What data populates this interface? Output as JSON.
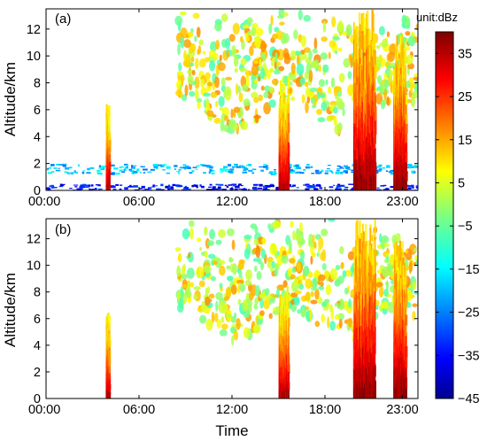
{
  "chart_data": [
    {
      "type": "heatmap",
      "panel_label": "(a)",
      "ylabel": "Altitude/km",
      "xlabel": "",
      "x_ticks": [
        "00:00",
        "06:00",
        "12:00",
        "18:00",
        "23:00"
      ],
      "x_tick_hours": [
        0,
        6,
        12,
        18,
        23
      ],
      "xlim_hours": [
        0,
        24
      ],
      "y_ticks": [
        0,
        2,
        4,
        6,
        8,
        10,
        12
      ],
      "ylim": [
        0,
        13.5
      ],
      "grid": false,
      "clutter_layers": [
        {
          "name": "boundary_layer",
          "alt_bottom": 1.3,
          "alt_top": 2.0,
          "value": -20
        },
        {
          "name": "near_surface",
          "alt_bottom": 0.0,
          "alt_top": 0.5,
          "value": -35
        }
      ],
      "columns": [
        {
          "t_start": 3.85,
          "t_end": 4.05,
          "alt_bottom": 0.0,
          "alt_top": 6.5,
          "max_dbz": 35
        },
        {
          "t_start": 15.0,
          "t_end": 15.6,
          "alt_bottom": 0.0,
          "alt_top": 8.5,
          "max_dbz": 35
        },
        {
          "t_start": 19.8,
          "t_end": 21.2,
          "alt_bottom": 0.0,
          "alt_top": 13.5,
          "max_dbz": 38
        },
        {
          "t_start": 22.4,
          "t_end": 23.2,
          "alt_bottom": 0.0,
          "alt_top": 12.0,
          "max_dbz": 38
        }
      ],
      "cloud_deck": {
        "t_start": 8.5,
        "t_end": 24.0,
        "alt_bottom": 5.5,
        "alt_top": 13.5,
        "typical_dbz": 5
      }
    },
    {
      "type": "heatmap",
      "panel_label": "(b)",
      "ylabel": "Altitude/km",
      "xlabel": "Time",
      "x_ticks": [
        "00:00",
        "06:00",
        "12:00",
        "18:00",
        "23:00"
      ],
      "x_tick_hours": [
        0,
        6,
        12,
        18,
        23
      ],
      "xlim_hours": [
        0,
        24
      ],
      "y_ticks": [
        0,
        2,
        4,
        6,
        8,
        10,
        12
      ],
      "ylim": [
        0,
        13.5
      ],
      "grid": false,
      "clutter_layers": [],
      "columns": [
        {
          "t_start": 3.85,
          "t_end": 4.05,
          "alt_bottom": 0.0,
          "alt_top": 6.5,
          "max_dbz": 35
        },
        {
          "t_start": 15.0,
          "t_end": 15.6,
          "alt_bottom": 0.0,
          "alt_top": 8.5,
          "max_dbz": 35
        },
        {
          "t_start": 19.8,
          "t_end": 21.2,
          "alt_bottom": 0.0,
          "alt_top": 13.5,
          "max_dbz": 38
        },
        {
          "t_start": 22.4,
          "t_end": 23.2,
          "alt_bottom": 0.0,
          "alt_top": 12.0,
          "max_dbz": 38
        }
      ],
      "cloud_deck": {
        "t_start": 8.5,
        "t_end": 24.0,
        "alt_bottom": 5.5,
        "alt_top": 13.5,
        "typical_dbz": 5
      }
    }
  ],
  "colorbar": {
    "title": "unit:dBz",
    "ticks": [
      35,
      25,
      15,
      5,
      -5,
      -15,
      -25,
      -35,
      -45
    ],
    "tick_labels": [
      "35",
      "25",
      "15",
      "5",
      "−5",
      "−15",
      "−25",
      "−35",
      "−45"
    ],
    "range": [
      -45,
      40
    ],
    "colormap": "jet"
  }
}
